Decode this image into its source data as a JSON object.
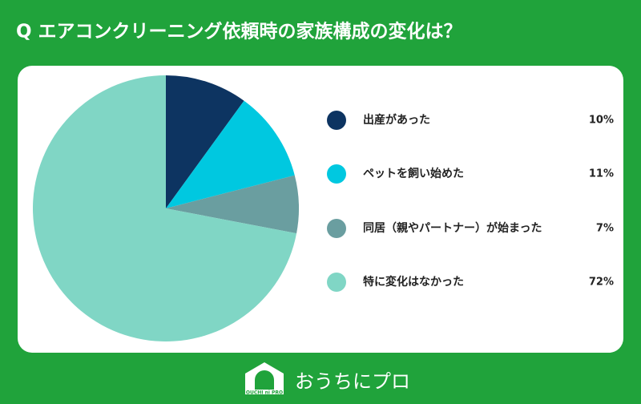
{
  "chart_data": {
    "type": "pie",
    "title": "Q エアコンクリーニング依頼時の家族構成の変化は？",
    "categories": [
      "出産があった",
      "ペットを飼い始めた",
      "同居（親やパートナー）が始まった",
      "特に変化はなかった"
    ],
    "values": [
      10,
      11,
      7,
      72
    ],
    "value_labels": [
      "10%",
      "11%",
      "7%",
      "72%"
    ],
    "colors": [
      "#0d3461",
      "#00c8e0",
      "#6a9ea0",
      "#80d6c5"
    ],
    "legend": "right"
  },
  "logo": {
    "text": "おうちにプロ",
    "subtext": "OUCHI ni PRO"
  }
}
